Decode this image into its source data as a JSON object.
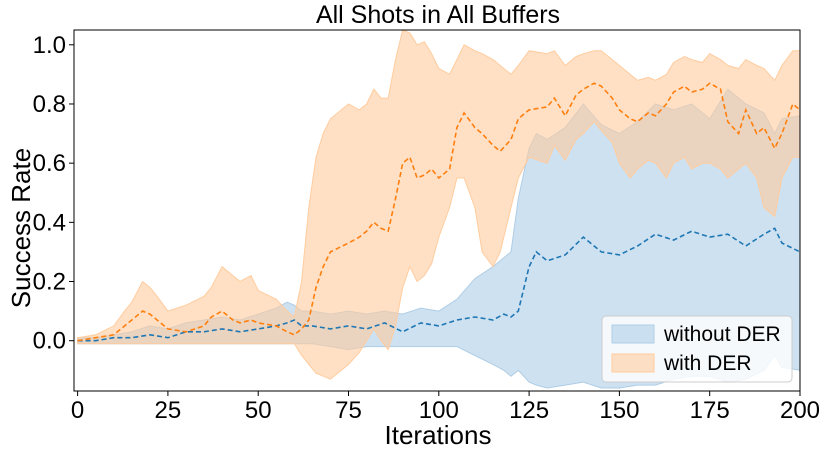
{
  "chart_data": {
    "type": "line",
    "title": "All Shots in All Buffers",
    "xlabel": "Iterations",
    "ylabel": "Success Rate",
    "xlim": [
      -1,
      200
    ],
    "ylim": [
      -0.17,
      1.05
    ],
    "xticks": [
      0,
      25,
      50,
      75,
      100,
      125,
      150,
      175,
      200
    ],
    "xtick_labels": [
      "0",
      "25",
      "50",
      "75",
      "100",
      "125",
      "150",
      "175",
      "200"
    ],
    "yticks": [
      0.0,
      0.2,
      0.4,
      0.6,
      0.8,
      1.0
    ],
    "ytick_labels": [
      "0.0",
      "0.2",
      "0.4",
      "0.6",
      "0.8",
      "1.0"
    ],
    "grid": false,
    "legend_position": "bottom-right",
    "series": [
      {
        "name": "without DER",
        "color": "#1f77b4",
        "band_color": "#aecde6",
        "x": [
          0,
          5,
          10,
          15,
          20,
          25,
          30,
          35,
          40,
          45,
          50,
          55,
          58,
          60,
          62,
          65,
          70,
          75,
          80,
          85,
          90,
          95,
          100,
          105,
          110,
          115,
          118,
          120,
          122,
          125,
          127,
          130,
          135,
          140,
          145,
          150,
          155,
          160,
          165,
          170,
          175,
          180,
          185,
          190,
          193,
          195,
          200
        ],
        "mean": [
          0.0,
          0.0,
          0.01,
          0.01,
          0.02,
          0.01,
          0.03,
          0.03,
          0.04,
          0.03,
          0.04,
          0.05,
          0.06,
          0.07,
          0.05,
          0.05,
          0.04,
          0.05,
          0.04,
          0.06,
          0.03,
          0.06,
          0.05,
          0.07,
          0.08,
          0.07,
          0.09,
          0.08,
          0.1,
          0.25,
          0.3,
          0.27,
          0.29,
          0.35,
          0.3,
          0.29,
          0.32,
          0.36,
          0.34,
          0.37,
          0.35,
          0.36,
          0.32,
          0.36,
          0.38,
          0.33,
          0.3
        ],
        "lower": [
          -0.01,
          -0.01,
          -0.01,
          -0.01,
          -0.01,
          -0.01,
          -0.01,
          -0.01,
          -0.01,
          -0.01,
          -0.01,
          -0.01,
          -0.01,
          -0.01,
          -0.01,
          -0.01,
          -0.02,
          -0.03,
          -0.02,
          -0.02,
          -0.02,
          -0.02,
          -0.02,
          -0.02,
          -0.05,
          -0.08,
          -0.1,
          -0.12,
          -0.1,
          -0.14,
          -0.15,
          -0.16,
          -0.15,
          -0.14,
          -0.16,
          -0.16,
          -0.15,
          -0.15,
          -0.13,
          -0.12,
          -0.12,
          -0.14,
          -0.13,
          -0.1,
          -0.05,
          -0.09,
          -0.1
        ],
        "upper": [
          0.01,
          0.01,
          0.02,
          0.03,
          0.05,
          0.04,
          0.06,
          0.07,
          0.08,
          0.07,
          0.09,
          0.11,
          0.13,
          0.12,
          0.1,
          0.1,
          0.09,
          0.1,
          0.09,
          0.1,
          0.09,
          0.11,
          0.1,
          0.14,
          0.21,
          0.25,
          0.28,
          0.3,
          0.48,
          0.65,
          0.7,
          0.68,
          0.72,
          0.8,
          0.73,
          0.7,
          0.74,
          0.8,
          0.78,
          0.8,
          0.75,
          0.85,
          0.8,
          0.77,
          0.7,
          0.75,
          0.76
        ]
      },
      {
        "name": "with DER",
        "color": "#ff7f0e",
        "band_color": "#ffcc9e",
        "x": [
          0,
          5,
          10,
          13,
          15,
          18,
          20,
          22,
          25,
          30,
          35,
          37,
          40,
          43,
          45,
          48,
          50,
          55,
          58,
          60,
          62,
          64,
          66,
          68,
          70,
          75,
          78,
          80,
          82,
          84,
          86,
          88,
          90,
          92,
          94,
          96,
          98,
          100,
          103,
          105,
          107,
          110,
          112,
          115,
          117,
          120,
          122,
          125,
          130,
          132,
          135,
          138,
          140,
          143,
          145,
          148,
          150,
          153,
          155,
          158,
          160,
          163,
          165,
          168,
          170,
          173,
          175,
          178,
          180,
          183,
          185,
          188,
          190,
          193,
          195,
          198,
          200
        ],
        "mean": [
          0.0,
          0.01,
          0.02,
          0.05,
          0.07,
          0.1,
          0.09,
          0.07,
          0.04,
          0.03,
          0.05,
          0.08,
          0.1,
          0.07,
          0.06,
          0.07,
          0.06,
          0.05,
          0.03,
          0.02,
          0.04,
          0.07,
          0.18,
          0.25,
          0.3,
          0.33,
          0.35,
          0.37,
          0.4,
          0.38,
          0.37,
          0.48,
          0.6,
          0.62,
          0.55,
          0.56,
          0.58,
          0.55,
          0.58,
          0.72,
          0.77,
          0.72,
          0.7,
          0.66,
          0.64,
          0.68,
          0.75,
          0.78,
          0.79,
          0.82,
          0.76,
          0.83,
          0.85,
          0.87,
          0.86,
          0.82,
          0.78,
          0.75,
          0.74,
          0.77,
          0.76,
          0.8,
          0.84,
          0.86,
          0.84,
          0.85,
          0.87,
          0.85,
          0.74,
          0.7,
          0.78,
          0.7,
          0.72,
          0.65,
          0.7,
          0.8,
          0.78
        ],
        "lower": [
          -0.01,
          -0.01,
          -0.01,
          -0.01,
          -0.01,
          -0.01,
          -0.01,
          -0.01,
          -0.01,
          -0.01,
          -0.01,
          -0.01,
          -0.01,
          -0.01,
          -0.01,
          -0.01,
          -0.01,
          -0.01,
          -0.01,
          -0.01,
          -0.05,
          -0.08,
          -0.11,
          -0.12,
          -0.13,
          -0.08,
          -0.04,
          0.0,
          0.04,
          0.0,
          -0.03,
          0.05,
          0.18,
          0.25,
          0.2,
          0.22,
          0.26,
          0.35,
          0.45,
          0.55,
          0.55,
          0.45,
          0.3,
          0.25,
          0.3,
          0.45,
          0.55,
          0.62,
          0.6,
          0.66,
          0.61,
          0.68,
          0.7,
          0.74,
          0.71,
          0.67,
          0.6,
          0.55,
          0.58,
          0.61,
          0.6,
          0.55,
          0.6,
          0.62,
          0.58,
          0.6,
          0.6,
          0.58,
          0.55,
          0.58,
          0.6,
          0.55,
          0.45,
          0.42,
          0.55,
          0.62,
          0.62
        ],
        "upper": [
          0.01,
          0.02,
          0.05,
          0.1,
          0.13,
          0.2,
          0.18,
          0.15,
          0.1,
          0.12,
          0.15,
          0.18,
          0.25,
          0.22,
          0.2,
          0.22,
          0.17,
          0.14,
          0.1,
          0.08,
          0.2,
          0.45,
          0.62,
          0.7,
          0.75,
          0.8,
          0.78,
          0.8,
          0.85,
          0.82,
          0.82,
          0.95,
          1.05,
          1.04,
          1.0,
          1.01,
          0.97,
          0.92,
          0.9,
          0.95,
          1.0,
          0.98,
          0.97,
          0.95,
          0.93,
          0.9,
          0.93,
          0.98,
          0.97,
          0.98,
          0.93,
          0.96,
          0.97,
          0.98,
          0.98,
          0.95,
          0.93,
          0.9,
          0.88,
          0.89,
          0.88,
          0.9,
          0.94,
          0.96,
          0.95,
          0.94,
          0.97,
          0.95,
          0.93,
          0.92,
          0.95,
          0.93,
          0.92,
          0.88,
          0.93,
          0.98,
          0.98
        ]
      }
    ]
  }
}
